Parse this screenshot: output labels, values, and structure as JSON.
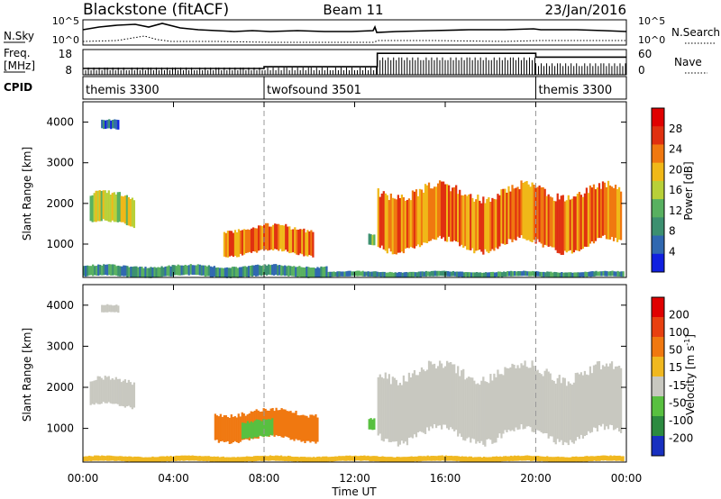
{
  "header": {
    "station": "Blackstone (fitACF)",
    "beam": "Beam 11",
    "date": "23/Jan/2016"
  },
  "chart_data": [
    {
      "type": "line",
      "panel": "noise",
      "left_label": "N.Sky",
      "right_label": "N.Search",
      "left_ticks": [
        "10^5",
        "10^0"
      ],
      "right_ticks": [
        "10^5",
        "10^0"
      ]
    },
    {
      "type": "line",
      "panel": "frequency",
      "left_label_line1": "Freq.",
      "left_label_line2": "[MHz]",
      "right_label": "Nave",
      "left_ticks": [
        "18",
        "8"
      ],
      "right_ticks": [
        "60",
        "0"
      ],
      "freq_steps": [
        {
          "from": 0.0,
          "to": 8.0,
          "mhz": 10.5
        },
        {
          "from": 8.0,
          "to": 13.0,
          "mhz": 11.2
        },
        {
          "from": 13.0,
          "to": 20.0,
          "mhz": 16.5
        },
        {
          "from": 20.0,
          "to": 24.0,
          "mhz": 15.0
        }
      ],
      "nave_steps": [
        {
          "from": 0.0,
          "to": 13.0,
          "value": 14
        },
        {
          "from": 13.0,
          "to": 20.0,
          "value": 38
        },
        {
          "from": 20.0,
          "to": 24.0,
          "value": 24
        }
      ]
    },
    {
      "type": "table",
      "panel": "cpid",
      "label": "CPID",
      "segments": [
        {
          "from": 0.0,
          "text": "themis 3300"
        },
        {
          "from": 8.0,
          "text": "twofsound 3501"
        },
        {
          "from": 20.0,
          "text": "themis 3300"
        }
      ]
    },
    {
      "type": "heatmap",
      "panel": "power",
      "ylabel": "Slant Range [km]",
      "yticks": [
        1000,
        2000,
        3000,
        4000
      ],
      "ylim": [
        180,
        4500
      ],
      "xlim": [
        0,
        24
      ],
      "colorbar_label": "Power [dB]",
      "colorbar_ticks": [
        "28",
        "24",
        "20",
        "16",
        "12",
        "8",
        "4"
      ],
      "colors": [
        "#1020e0",
        "#3068b0",
        "#3c9070",
        "#58b060",
        "#b8d038",
        "#f0b818",
        "#f07810",
        "#e03010",
        "#e00000"
      ],
      "regions": [
        {
          "t0": 0.3,
          "t1": 2.3,
          "r0": 1450,
          "r1": 2250,
          "level": 4
        },
        {
          "t0": 0.8,
          "t1": 1.6,
          "r0": 3800,
          "r1": 4050,
          "level": 1
        },
        {
          "t0": 6.2,
          "t1": 10.2,
          "r0": 750,
          "r1": 1450,
          "level": 6
        },
        {
          "t0": 12.6,
          "t1": 12.9,
          "r0": 950,
          "r1": 1250,
          "level": 3
        },
        {
          "t0": 13.0,
          "t1": 23.8,
          "r0": 900,
          "r1": 2400,
          "level": 6
        },
        {
          "t0": 0.0,
          "t1": 10.8,
          "r0": 190,
          "r1": 480,
          "level": 2
        },
        {
          "t0": 10.8,
          "t1": 23.9,
          "r0": 190,
          "r1": 330,
          "level": 2
        }
      ]
    },
    {
      "type": "heatmap",
      "panel": "velocity",
      "ylabel": "Slant Range [km]",
      "yticks": [
        1000,
        2000,
        3000,
        4000
      ],
      "ylim": [
        180,
        4500
      ],
      "xlim": [
        0,
        24
      ],
      "xticks": [
        "00:00",
        "04:00",
        "08:00",
        "12:00",
        "16:00",
        "20:00",
        "00:00"
      ],
      "xlabel": "Time UT",
      "colorbar_label": "Velocity [m s",
      "colorbar_label_sup": "-1",
      "colorbar_label_end": "]",
      "colorbar_ticks": [
        "200",
        "100",
        "50",
        "15",
        "-15",
        "-50",
        "-100",
        "-200"
      ],
      "colors": [
        "#1830c0",
        "#2c8a40",
        "#58c040",
        "#c8c8c0",
        "#f0b820",
        "#f07810",
        "#e84010",
        "#e00000"
      ],
      "regions": [
        {
          "t0": 0.3,
          "t1": 2.3,
          "r0": 1500,
          "r1": 2200,
          "color": 3
        },
        {
          "t0": 0.8,
          "t1": 1.6,
          "r0": 3800,
          "r1": 4000,
          "color": 3
        },
        {
          "t0": 5.8,
          "t1": 10.4,
          "r0": 700,
          "r1": 1450,
          "color": 5
        },
        {
          "t0": 7.0,
          "t1": 8.4,
          "r0": 750,
          "r1": 1200,
          "color": 2
        },
        {
          "t0": 12.6,
          "t1": 12.9,
          "r0": 950,
          "r1": 1250,
          "color": 2
        },
        {
          "t0": 13.0,
          "t1": 23.8,
          "r0": 750,
          "r1": 2500,
          "color": 3
        },
        {
          "t0": 0.0,
          "t1": 23.9,
          "r0": 190,
          "r1": 330,
          "color": 4
        }
      ]
    }
  ]
}
